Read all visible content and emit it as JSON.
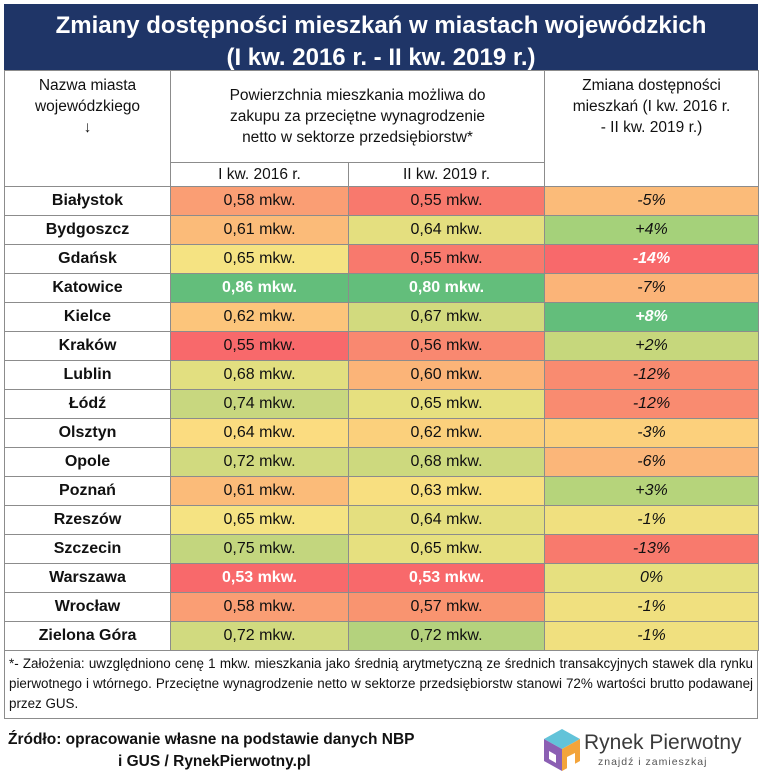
{
  "title_line1": "Zmiany dostępności mieszkań w miastach wojewódzkich",
  "title_line2": "(I kw. 2016 r. - II kw. 2019 r.)",
  "headers": {
    "city_line1": "Nazwa miasta",
    "city_line2": "wojewódzkiego",
    "city_arrow": "↓",
    "area_line1": "Powierzchnia mieszkania możliwa do",
    "area_line2": "zakupu za przeciętne wynagrodzenie",
    "area_line3": "netto w sektorze przedsiębiorstw*",
    "q2016": "I kw. 2016 r.",
    "q2019": "II kw. 2019 r.",
    "change_line1": "Zmiana dostępności",
    "change_line2": "mieszkań (I kw. 2016 r.",
    "change_line3": "- II kw. 2019 r.)"
  },
  "colors": {
    "title_bg": "#1f3567",
    "green_dark": "#63be7b",
    "green_light": "#a5d17a",
    "yellow": "#e6e07f",
    "orange": "#fbbb79",
    "red": "#f8696b"
  },
  "chart_data": {
    "type": "table",
    "columns": [
      "Nazwa miasta wojewódzkiego",
      "I kw. 2016 r.",
      "II kw. 2019 r.",
      "Zmiana dostępności mieszkań (I kw. 2016 r. - II kw. 2019 r.)"
    ],
    "rows": [
      {
        "city": "Białystok",
        "q2016": "0,58 mkw.",
        "q2019": "0,55 mkw.",
        "change": "-5%",
        "c1": "#fa9e74",
        "c2": "#f8796d",
        "c3": "#fbbb79"
      },
      {
        "city": "Bydgoszcz",
        "q2016": "0,61 mkw.",
        "q2019": "0,64 mkw.",
        "change": "+4%",
        "c1": "#fbbb79",
        "c2": "#e4df7f",
        "c3": "#a5d17a"
      },
      {
        "city": "Gdańsk",
        "q2016": "0,65 mkw.",
        "q2019": "0,55 mkw.",
        "change": "-14%",
        "c1": "#f5e382",
        "c2": "#f8796d",
        "c3": "#f8696b"
      },
      {
        "city": "Katowice",
        "q2016": "0,86 mkw.",
        "q2019": "0,80 mkw.",
        "change": "-7%",
        "c1": "#63be7b",
        "c2": "#63be7b",
        "c3": "#fbb478"
      },
      {
        "city": "Kielce",
        "q2016": "0,62 mkw.",
        "q2019": "0,67 mkw.",
        "change": "+8%",
        "c1": "#fcc57b",
        "c2": "#d2da7e",
        "c3": "#63be7b"
      },
      {
        "city": "Kraków",
        "q2016": "0,55 mkw.",
        "q2019": "0,56 mkw.",
        "change": "+2%",
        "c1": "#f8696b",
        "c2": "#f98870",
        "c3": "#c6d77c"
      },
      {
        "city": "Lublin",
        "q2016": "0,68 mkw.",
        "q2019": "0,60 mkw.",
        "change": "-12%",
        "c1": "#e2df80",
        "c2": "#fbb478",
        "c3": "#f98b70"
      },
      {
        "city": "Łódź",
        "q2016": "0,74 mkw.",
        "q2019": "0,65 mkw.",
        "change": "-12%",
        "c1": "#c8d77f",
        "c2": "#e6e07f",
        "c3": "#f98b70"
      },
      {
        "city": "Olsztyn",
        "q2016": "0,64 mkw.",
        "q2019": "0,62 mkw.",
        "change": "-3%",
        "c1": "#fbdc80",
        "c2": "#fbd07c",
        "c3": "#fcd07c"
      },
      {
        "city": "Opole",
        "q2016": "0,72 mkw.",
        "q2019": "0,68 mkw.",
        "change": "-6%",
        "c1": "#d1da7f",
        "c2": "#cdd97e",
        "c3": "#fbb679"
      },
      {
        "city": "Poznań",
        "q2016": "0,61 mkw.",
        "q2019": "0,63 mkw.",
        "change": "+3%",
        "c1": "#fbbb79",
        "c2": "#f8df80",
        "c3": "#b6d47b"
      },
      {
        "city": "Rzeszów",
        "q2016": "0,65 mkw.",
        "q2019": "0,64 mkw.",
        "change": "-1%",
        "c1": "#f5e382",
        "c2": "#e4df7f",
        "c3": "#f0e07f"
      },
      {
        "city": "Szczecin",
        "q2016": "0,75 mkw.",
        "q2019": "0,65 mkw.",
        "change": "-13%",
        "c1": "#c3d67e",
        "c2": "#e6e07f",
        "c3": "#f87a6d"
      },
      {
        "city": "Warszawa",
        "q2016": "0,53 mkw.",
        "q2019": "0,53 mkw.",
        "change": "0%",
        "c1": "#f8696b",
        "c2": "#f8696b",
        "c3": "#e6e07f"
      },
      {
        "city": "Wrocław",
        "q2016": "0,58 mkw.",
        "q2019": "0,57 mkw.",
        "change": "-1%",
        "c1": "#fa9e74",
        "c2": "#f99470",
        "c3": "#f0e07f"
      },
      {
        "city": "Zielona Góra",
        "q2016": "0,72 mkw.",
        "q2019": "0,72 mkw.",
        "change": "-1%",
        "c1": "#d1da7f",
        "c2": "#b4d27d",
        "c3": "#f0e07f"
      }
    ],
    "bold_rows": [
      "Katowice",
      "Warszawa"
    ],
    "bold_change_cells": [
      "Gdańsk",
      "Kielce"
    ]
  },
  "note": "*- Założenia: uwzględniono cenę 1 mkw. mieszkania jako średnią arytmetyczną ze średnich transakcyjnych stawek dla rynku pierwotnego i wtórnego. Przeciętne wynagrodzenie netto w sektorze przedsiębiorstw stanowi 72% wartości brutto podawanej przez GUS.",
  "source_line1": "Źródło: opracowanie własne na podstawie danych NBP",
  "source_line2": "i GUS / RynekPierwotny.pl",
  "logo": {
    "name": "Rynek Pierwotny",
    "tagline": "znajdź i zamieszkaj",
    "icon": "house-cube-logo"
  }
}
